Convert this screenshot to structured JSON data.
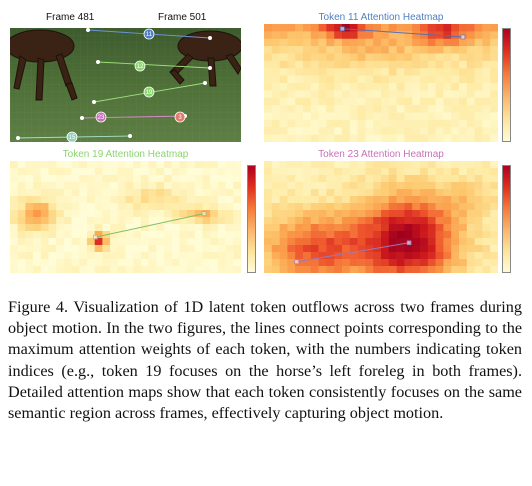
{
  "panels": {
    "frames": {
      "frame_left_label": "Frame 481",
      "frame_right_label": "Frame 501",
      "tokens": [
        {
          "id": "11",
          "color": "#4f7fc0"
        },
        {
          "id": "12",
          "color": "#8cd470"
        },
        {
          "id": "19",
          "color": "#8cd470"
        },
        {
          "id": "23",
          "color": "#c971b8"
        },
        {
          "id": "3",
          "color": "#e07a6a"
        },
        {
          "id": "15",
          "color": "#8fd2b8"
        }
      ]
    },
    "heatmap_11": {
      "title": "Token 11 Attention Heatmap",
      "title_color": "#4f7fc0",
      "line_color": "#5a6fb0"
    },
    "heatmap_19": {
      "title": "Token 19 Attention Heatmap",
      "title_color": "#8cd470",
      "line_color": "#7fc060"
    },
    "heatmap_23": {
      "title": "Token 23 Attention Heatmap",
      "title_color": "#c971b8",
      "line_color": "#9a7ab8"
    }
  },
  "caption": {
    "text": "Figure 4.  Visualization of 1D latent token outflows across two frames during object motion. In the two figures, the lines connect points corresponding to the maximum attention weights of each token, with the numbers indicating token indices (e.g., token 19 focuses on the horse’s left foreleg in both frames). Detailed attention maps show that each token consistently focuses on the same semantic region across frames, effectively capturing object motion."
  }
}
